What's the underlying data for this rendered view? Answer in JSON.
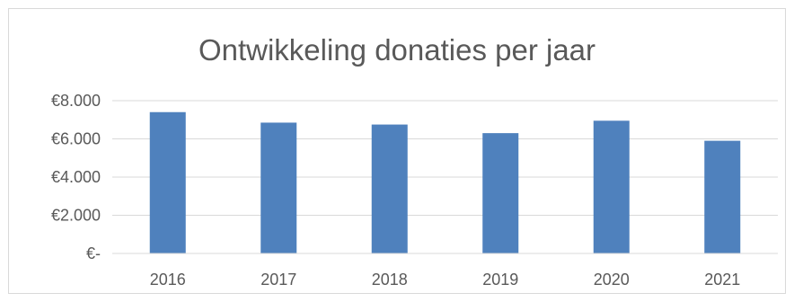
{
  "chart_data": {
    "type": "bar",
    "title": "Ontwikkeling donaties per jaar",
    "xlabel": "",
    "ylabel": "",
    "categories": [
      "2016",
      "2017",
      "2018",
      "2019",
      "2020",
      "2021"
    ],
    "values": [
      7400,
      6850,
      6750,
      6300,
      6950,
      5900
    ],
    "ylim": [
      0,
      8000
    ],
    "yticks": [
      0,
      2000,
      4000,
      6000,
      8000
    ],
    "ytick_labels": [
      "€-",
      "€2.000",
      "€4.000",
      "€6.000",
      "€8.000"
    ],
    "grid": true,
    "legend": "none",
    "colors": {
      "bar": "#4f81bd",
      "grid": "#d9d9d9",
      "text": "#595959"
    }
  }
}
